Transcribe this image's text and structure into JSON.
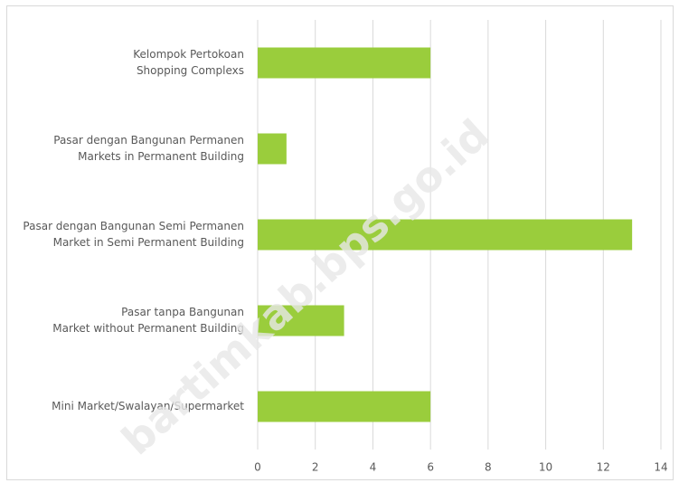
{
  "chart_data": {
    "type": "bar",
    "orientation": "horizontal",
    "categories": [
      [
        "Kelompok Pertokoan",
        "Shopping Complexs"
      ],
      [
        "Pasar dengan Bangunan Permanen",
        "Markets in Permanent Building"
      ],
      [
        "Pasar dengan Bangunan Semi Permanen",
        "Market in Semi Permanent Building"
      ],
      [
        "Pasar tanpa Bangunan",
        "Market without Permanent Building"
      ],
      [
        "Mini Market/Swalayan/Supermarket"
      ]
    ],
    "values": [
      6,
      1,
      13,
      3,
      6
    ],
    "color": "#9acd3c",
    "xlim": [
      0,
      14
    ],
    "xticks": [
      0,
      2,
      4,
      6,
      8,
      10,
      12,
      14
    ],
    "grid": true,
    "watermark": "bartimkab.bps.go.id"
  }
}
